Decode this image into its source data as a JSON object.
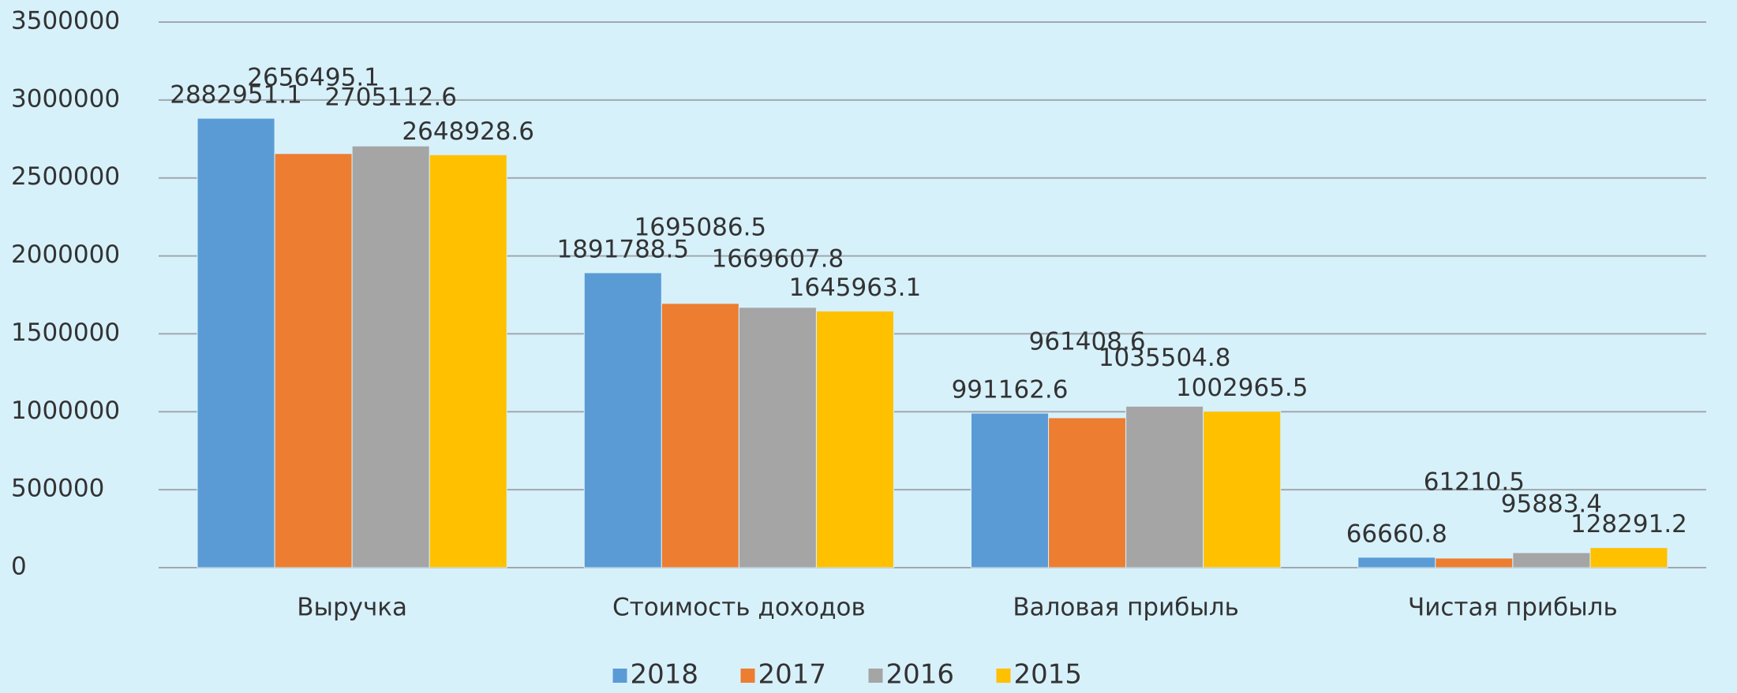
{
  "chart_data": {
    "type": "bar",
    "categories": [
      "Выручка",
      "Стоимость доходов",
      "Валовая прибыль",
      "Чистая прибыль"
    ],
    "series": [
      {
        "name": "2018",
        "color": "#5b9bd5",
        "values": [
          2882951.1,
          1891788.5,
          991162.6,
          66660.8
        ]
      },
      {
        "name": "2017",
        "color": "#ed7d31",
        "values": [
          2656495.1,
          1695086.5,
          961408.6,
          61210.5
        ]
      },
      {
        "name": "2016",
        "color": "#a5a5a5",
        "values": [
          2705112.6,
          1669607.8,
          1035504.8,
          95883.4
        ]
      },
      {
        "name": "2015",
        "color": "#ffc000",
        "values": [
          2648928.6,
          1645963.1,
          1002965.5,
          128291.2
        ]
      }
    ],
    "ylim": [
      0,
      3500000
    ],
    "yticks": [
      0,
      500000,
      1000000,
      1500000,
      2000000,
      2500000,
      3000000,
      3500000
    ],
    "grid": true,
    "legend": "bottom"
  }
}
